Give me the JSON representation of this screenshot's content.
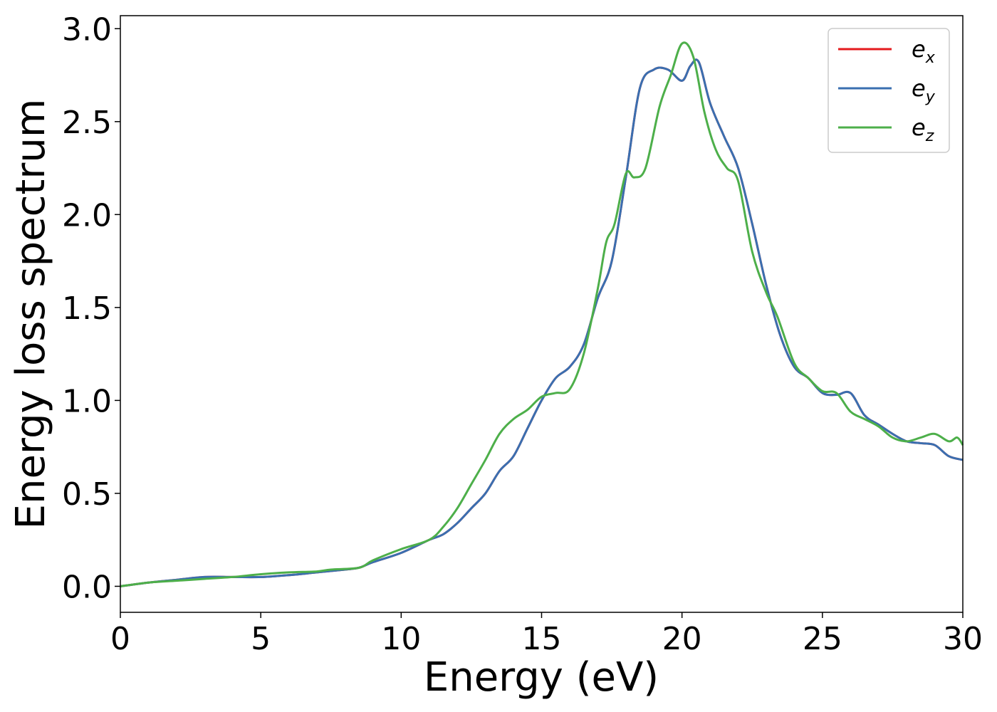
{
  "chart_data": {
    "type": "line",
    "title": "",
    "xlabel": "Energy (eV)",
    "ylabel": "Energy loss spectrum",
    "xlim": [
      0,
      30
    ],
    "ylim": [
      -0.14,
      3.07
    ],
    "x_ticks": [
      "0",
      "5",
      "10",
      "15",
      "20",
      "25",
      "30"
    ],
    "y_ticks": [
      "0.0",
      "0.5",
      "1.0",
      "1.5",
      "2.0",
      "2.5",
      "3.0"
    ],
    "x_tick_values": [
      0,
      5,
      10,
      15,
      20,
      25,
      30
    ],
    "y_tick_values": [
      0.0,
      0.5,
      1.0,
      1.5,
      2.0,
      2.5,
      3.0
    ],
    "grid": false,
    "legend_position": "top-right",
    "series": [
      {
        "name": "e",
        "subscript": "x",
        "color": "#e41a1c",
        "x": [
          0,
          1,
          2,
          3,
          4,
          5,
          6,
          7,
          8,
          8.5,
          9,
          10,
          11,
          11.5,
          12,
          12.5,
          13,
          13.5,
          14,
          14.5,
          15,
          15.5,
          16,
          16.5,
          17,
          17.5,
          18,
          18.5,
          19,
          19.5,
          20,
          20.3,
          20.6,
          21,
          21.5,
          22,
          22.5,
          23,
          23.5,
          24,
          24.5,
          25,
          25.5,
          26,
          26.5,
          27,
          27.5,
          28,
          28.5,
          29,
          29.5,
          30
        ],
        "y": [
          0.0,
          0.02,
          0.035,
          0.05,
          0.05,
          0.05,
          0.06,
          0.075,
          0.09,
          0.1,
          0.13,
          0.18,
          0.25,
          0.28,
          0.34,
          0.42,
          0.5,
          0.62,
          0.7,
          0.85,
          1.0,
          1.12,
          1.18,
          1.3,
          1.55,
          1.75,
          2.2,
          2.68,
          2.78,
          2.78,
          2.72,
          2.8,
          2.82,
          2.6,
          2.42,
          2.25,
          1.95,
          1.62,
          1.35,
          1.18,
          1.12,
          1.04,
          1.03,
          1.04,
          0.92,
          0.87,
          0.82,
          0.78,
          0.77,
          0.76,
          0.7,
          0.68
        ]
      },
      {
        "name": "e",
        "subscript": "y",
        "color": "#3a6fb0",
        "x": [
          0,
          1,
          2,
          3,
          4,
          5,
          6,
          7,
          8,
          8.5,
          9,
          10,
          11,
          11.5,
          12,
          12.5,
          13,
          13.5,
          14,
          14.5,
          15,
          15.5,
          16,
          16.5,
          17,
          17.5,
          18,
          18.5,
          19,
          19.5,
          20,
          20.3,
          20.6,
          21,
          21.5,
          22,
          22.5,
          23,
          23.5,
          24,
          24.5,
          25,
          25.5,
          26,
          26.5,
          27,
          27.5,
          28,
          28.5,
          29,
          29.5,
          30
        ],
        "y": [
          0.0,
          0.02,
          0.035,
          0.05,
          0.05,
          0.05,
          0.06,
          0.075,
          0.09,
          0.1,
          0.13,
          0.18,
          0.25,
          0.28,
          0.34,
          0.42,
          0.5,
          0.62,
          0.7,
          0.85,
          1.0,
          1.12,
          1.18,
          1.3,
          1.55,
          1.75,
          2.2,
          2.68,
          2.78,
          2.78,
          2.72,
          2.8,
          2.82,
          2.6,
          2.42,
          2.25,
          1.95,
          1.62,
          1.35,
          1.18,
          1.12,
          1.04,
          1.03,
          1.04,
          0.92,
          0.87,
          0.82,
          0.78,
          0.77,
          0.76,
          0.7,
          0.68
        ]
      },
      {
        "name": "e",
        "subscript": "z",
        "color": "#4daf4a",
        "x": [
          0,
          1,
          2,
          3,
          4,
          5,
          6,
          7,
          7.5,
          8.5,
          9,
          10,
          11,
          11.5,
          12,
          12.5,
          13,
          13.5,
          14,
          14.5,
          15,
          15.5,
          16,
          16.5,
          17,
          17.3,
          17.6,
          18,
          18.3,
          18.7,
          19.2,
          19.6,
          20,
          20.4,
          20.8,
          21.2,
          21.6,
          22,
          22.5,
          23,
          23.4,
          24,
          24.5,
          25,
          25.5,
          26,
          26.5,
          27,
          27.5,
          28,
          28.5,
          29,
          29.5,
          29.8,
          30
        ],
        "y": [
          0.0,
          0.02,
          0.03,
          0.04,
          0.05,
          0.065,
          0.075,
          0.08,
          0.09,
          0.1,
          0.14,
          0.2,
          0.25,
          0.32,
          0.42,
          0.55,
          0.68,
          0.82,
          0.9,
          0.95,
          1.02,
          1.04,
          1.06,
          1.25,
          1.6,
          1.85,
          1.95,
          2.22,
          2.2,
          2.25,
          2.58,
          2.75,
          2.92,
          2.85,
          2.55,
          2.35,
          2.25,
          2.18,
          1.8,
          1.58,
          1.45,
          1.2,
          1.12,
          1.05,
          1.04,
          0.94,
          0.9,
          0.86,
          0.8,
          0.78,
          0.8,
          0.82,
          0.78,
          0.8,
          0.76
        ]
      }
    ]
  }
}
